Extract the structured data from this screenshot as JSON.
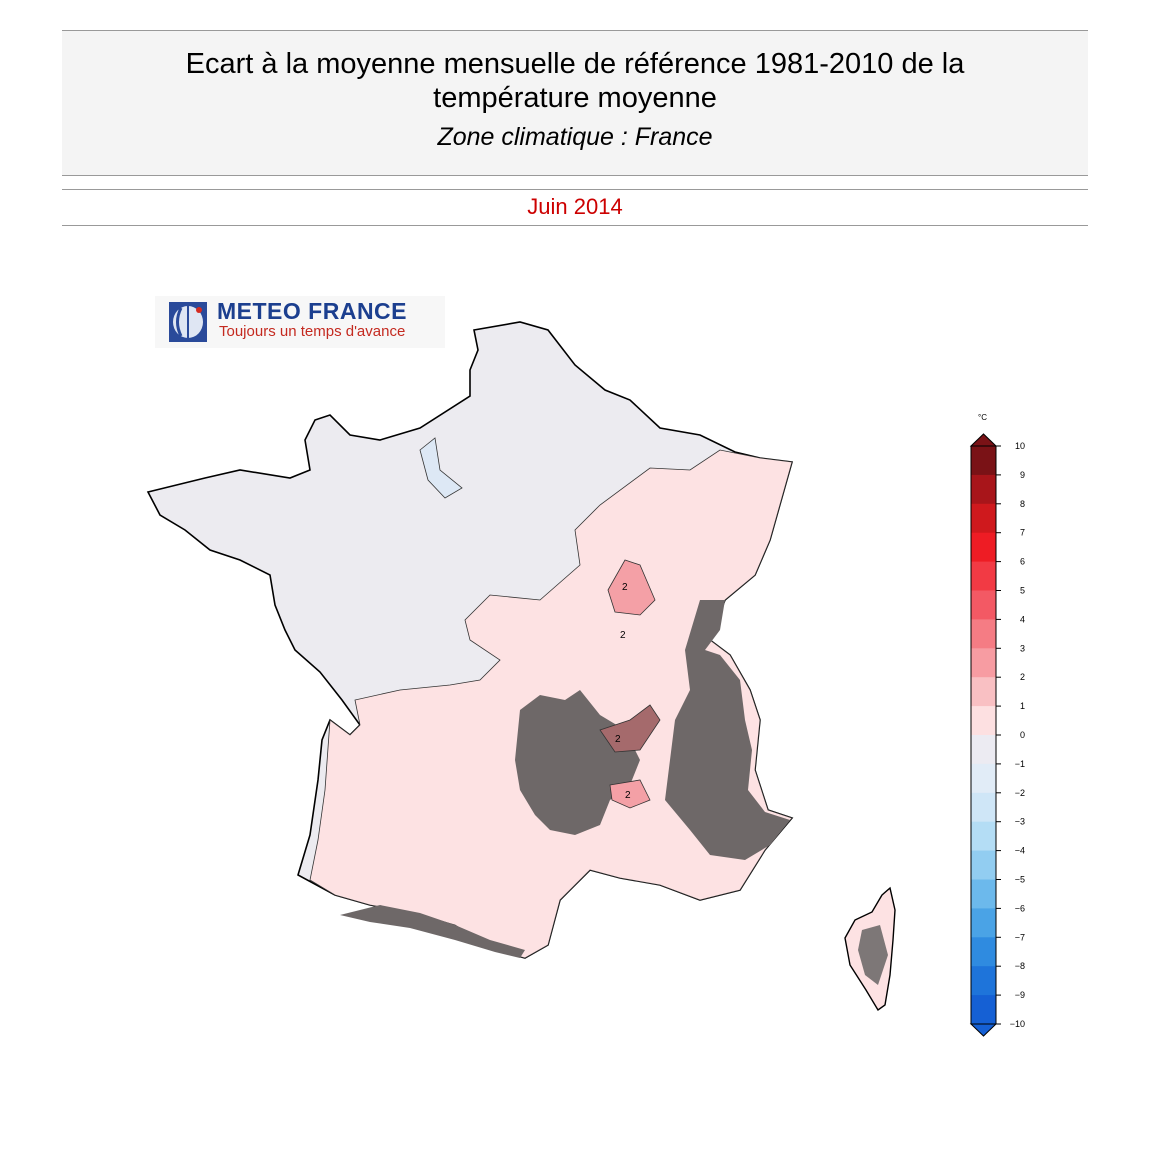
{
  "header": {
    "title_line1": "Ecart à la moyenne mensuelle de référence 1981-2010 de la",
    "title_line2": "température moyenne",
    "subtitle": "Zone climatique : France"
  },
  "period": "Juin 2014",
  "logo": {
    "name": "METEO FRANCE",
    "slogan": "Toujours un temps d'avance"
  },
  "map": {
    "contour_label": "2"
  },
  "colorbar": {
    "unit": "°C",
    "ticks": [
      "10",
      "9",
      "8",
      "7",
      "6",
      "5",
      "4",
      "3",
      "2",
      "1",
      "0",
      "−1",
      "−2",
      "−3",
      "−4",
      "−5",
      "−6",
      "−7",
      "−8",
      "−9",
      "−10"
    ],
    "colors": [
      "#7a1216",
      "#a8151a",
      "#cf191d",
      "#ee1c24",
      "#f23a44",
      "#f35964",
      "#f57c84",
      "#f79ca2",
      "#f9c0c3",
      "#fde0e1",
      "#ecebf2",
      "#e1ecf7",
      "#cfe6f7",
      "#b4ddf5",
      "#92cdf1",
      "#6cb9ec",
      "#4aa3e6",
      "#2f8be0",
      "#1e74da",
      "#1560d4"
    ]
  }
}
